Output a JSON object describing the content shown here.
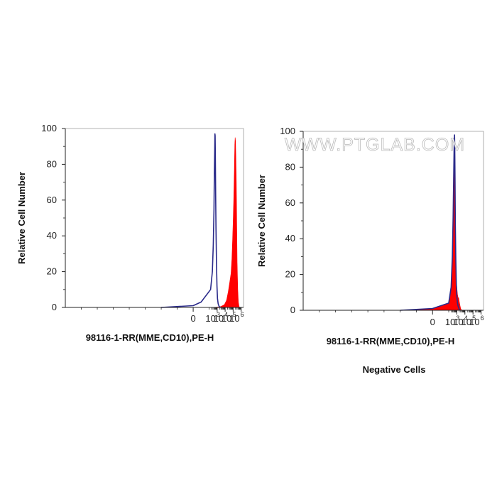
{
  "watermark": "WWW.PTGLAB.COM",
  "colors": {
    "sample_fill": "#ff0000",
    "control_line": "#2a2a8a",
    "axis": "#222222"
  },
  "chart_data": [
    {
      "type": "area",
      "title": "",
      "xlabel": "98116-1-RR(MME,CD10),PE-H",
      "ylabel": "Relative Cell Number",
      "x_scale": "biexponential",
      "ylim": [
        0,
        100
      ],
      "y_ticks": [
        "0",
        "20",
        "40",
        "60",
        "80",
        "100"
      ],
      "x_ticks": [
        {
          "base": "0",
          "exp": ""
        },
        {
          "base": "10",
          "exp": "3"
        },
        {
          "base": "10",
          "exp": "4"
        },
        {
          "base": "10",
          "exp": "5"
        },
        {
          "base": "10",
          "exp": "6"
        }
      ],
      "caption": "",
      "series": [
        {
          "role": "sample",
          "style": "filled",
          "x": [
            500,
            3000,
            8000,
            15000,
            25000,
            40000,
            55000,
            70000,
            85000,
            100000,
            120000,
            140000,
            160000,
            180000,
            200000,
            220000,
            250000,
            280000,
            320000,
            380000,
            450000,
            550000,
            700000
          ],
          "y": [
            0,
            0.5,
            1.5,
            4,
            9,
            15,
            19,
            27,
            38,
            48,
            60,
            75,
            91,
            95,
            93,
            84,
            70,
            48,
            25,
            10,
            3,
            0.5,
            0
          ]
        },
        {
          "role": "control",
          "style": "line",
          "x": [
            -200,
            0,
            50,
            150,
            250,
            330,
            400,
            450,
            500,
            530,
            560,
            600,
            650,
            720,
            820,
            950,
            1100,
            1350,
            1800,
            2600
          ],
          "y": [
            0,
            1,
            3,
            10,
            20,
            35,
            55,
            75,
            90,
            97,
            96,
            85,
            65,
            45,
            25,
            12,
            5,
            2,
            0.5,
            0
          ]
        }
      ]
    },
    {
      "type": "area",
      "title": "",
      "xlabel": "98116-1-RR(MME,CD10),PE-H",
      "ylabel": "Relative Cell Number",
      "x_scale": "biexponential",
      "ylim": [
        0,
        100
      ],
      "y_ticks": [
        "0",
        "20",
        "40",
        "60",
        "80",
        "100"
      ],
      "x_ticks": [
        {
          "base": "0",
          "exp": ""
        },
        {
          "base": "10",
          "exp": "3"
        },
        {
          "base": "10",
          "exp": "4"
        },
        {
          "base": "10",
          "exp": "5"
        },
        {
          "base": "10",
          "exp": "6"
        }
      ],
      "caption": "Negative Cells",
      "series": [
        {
          "role": "sample",
          "style": "filled",
          "x": [
            -200,
            0,
            100,
            200,
            280,
            350,
            400,
            450,
            480,
            510,
            550,
            600,
            660,
            750,
            860,
            1000,
            1200,
            1450,
            1700,
            2000,
            2400,
            3000,
            4000
          ],
          "y": [
            0,
            1,
            4,
            12,
            28,
            50,
            70,
            88,
            95,
            92,
            80,
            60,
            40,
            25,
            16,
            13,
            9,
            7,
            7,
            5,
            3,
            1,
            0
          ]
        },
        {
          "role": "control",
          "style": "line",
          "x": [
            -200,
            0,
            100,
            200,
            280,
            350,
            400,
            450,
            490,
            520,
            560,
            600,
            660,
            750,
            860,
            1000,
            1200,
            1500,
            2000,
            2600
          ],
          "y": [
            0,
            1,
            4,
            13,
            30,
            52,
            72,
            88,
            96,
            98,
            90,
            72,
            48,
            28,
            15,
            8,
            4,
            2,
            0.5,
            0
          ]
        }
      ]
    }
  ]
}
